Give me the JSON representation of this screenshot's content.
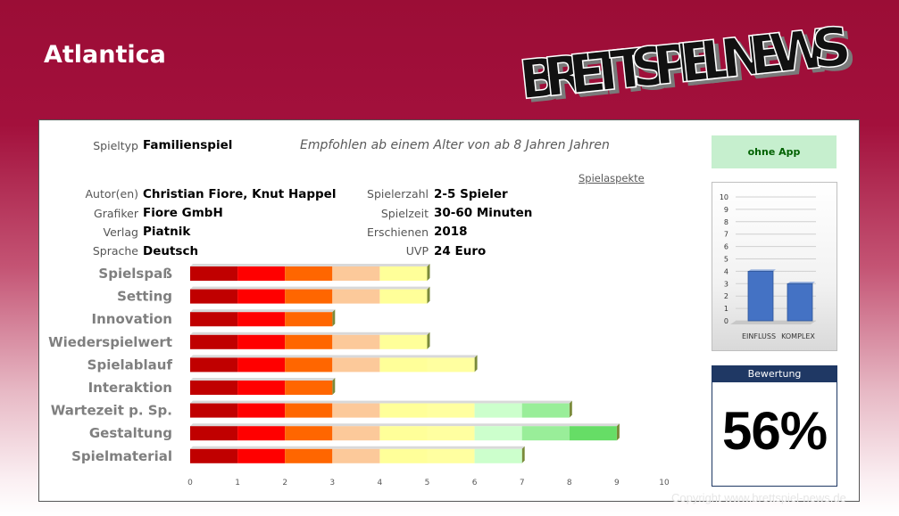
{
  "header": {
    "title": "Atlantica",
    "logo_text": "BRETTSPIEL NEWS"
  },
  "info": {
    "game_type_label": "Spieltyp",
    "game_type": "Familienspiel",
    "recommendation": "Empfohlen ab einem Alter von ab 8 Jahren Jahren",
    "aspects_link": "Spielaspekte",
    "author_label": "Autor(en)",
    "author": "Christian Fiore, Knut Happel",
    "illustrator_label": "Grafiker",
    "illustrator": "Fiore GmbH",
    "publisher_label": "Verlag",
    "publisher": "Piatnik",
    "language_label": "Sprache",
    "language": "Deutsch",
    "players_label": "Spielerzahl",
    "players": "2-5 Spieler",
    "duration_label": "Spielzeit",
    "duration": "30-60 Minuten",
    "released_label": "Erschienen",
    "released": "2018",
    "price_label": "UVP",
    "price": "24 Euro"
  },
  "app_badge": "ohne App",
  "rating": {
    "label": "Bewertung",
    "value": "56%"
  },
  "copyright": "Copyright www.brettspiel-news.de",
  "colors": {
    "segments": [
      "#c00000",
      "#ff0000",
      "#ff6600",
      "#fcc99a",
      "#ffff99",
      "#ffffa0",
      "#ccffcc",
      "#99ee99",
      "#66dd66",
      "#00bb00"
    ]
  },
  "chart_data": [
    {
      "type": "bar",
      "orientation": "horizontal",
      "categories": [
        "Spielspaß",
        "Setting",
        "Innovation",
        "Wiederspielwert",
        "Spielablauf",
        "Interaktion",
        "Wartezeit p. Sp.",
        "Gestaltung",
        "Spielmaterial"
      ],
      "values": [
        5,
        5,
        3,
        5,
        6,
        3,
        8,
        9,
        7
      ],
      "xlim": [
        0,
        10
      ],
      "xticks": [
        0,
        1,
        2,
        3,
        4,
        5,
        6,
        7,
        8,
        9,
        10
      ],
      "grid": false
    },
    {
      "type": "bar",
      "categories": [
        "EINFLUSS",
        "KOMPLEX"
      ],
      "values": [
        4,
        3
      ],
      "ylim": [
        0,
        10
      ],
      "yticks": [
        0,
        1,
        2,
        3,
        4,
        5,
        6,
        7,
        8,
        9,
        10
      ],
      "grid": true,
      "bar_color": "#4472c4"
    }
  ]
}
